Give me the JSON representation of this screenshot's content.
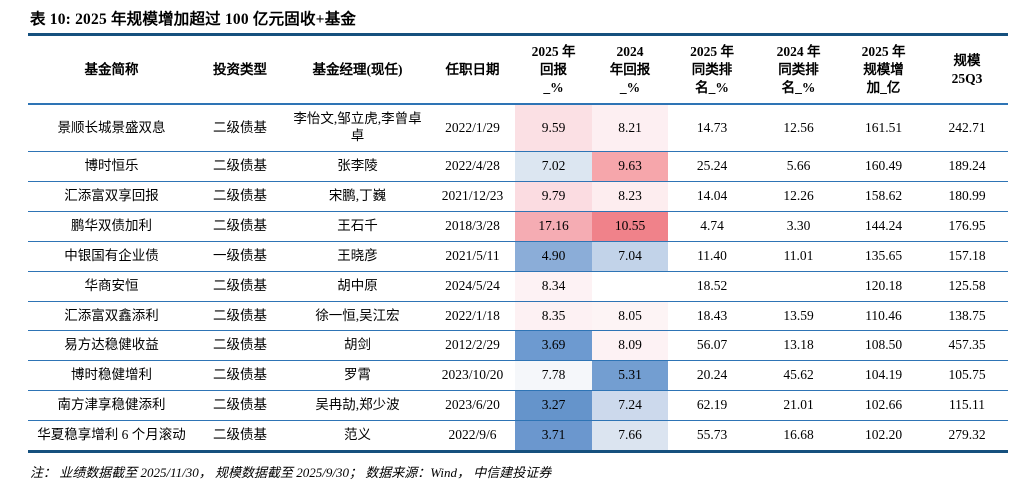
{
  "page": {
    "title": "表 10: 2025 年规模增加超过 100 亿元固收+基金",
    "footnote": "注： 业绩数据截至 2025/11/30， 规模数据截至 2025/9/30； 数据来源：Wind， 中信建投证券"
  },
  "colors": {
    "thick_rule": "#15507e",
    "row_separator": "#2e74b5",
    "heat_red_max": "#f0828a",
    "heat_blue_max": "#6594cb"
  },
  "table": {
    "headers": [
      {
        "label": "基金简称"
      },
      {
        "label": "投资类型"
      },
      {
        "label": "基金经理(现任)"
      },
      {
        "label": "任职日期"
      },
      {
        "label": "2025 年\n回报\n_%"
      },
      {
        "label": "2024\n年回报\n_%"
      },
      {
        "label": "2025 年\n同类排\n名_%"
      },
      {
        "label": "2024 年\n同类排\n名_%"
      },
      {
        "label": "2025 年\n规模增\n加_亿"
      },
      {
        "label": "规模\n25Q3"
      }
    ],
    "rows": [
      {
        "name": "景顺长城景盛双息",
        "type": "二级债基",
        "manager": "李怡文,邹立虎,李曾卓卓",
        "date": "2022/1/29",
        "r2025": "9.59",
        "r2024": "8.21",
        "rank2025": "14.73",
        "rank2024": "12.56",
        "scale_inc": "161.51",
        "scale_q3": "242.71",
        "r2025_bg": "#fbe0e4",
        "r2024_bg": "#fdeff2"
      },
      {
        "name": "博时恒乐",
        "type": "二级债基",
        "manager": "张李陵",
        "date": "2022/4/28",
        "r2025": "7.02",
        "r2024": "9.63",
        "rank2025": "25.24",
        "rank2024": "5.66",
        "scale_inc": "160.49",
        "scale_q3": "189.24",
        "r2025_bg": "#dce6f1",
        "r2024_bg": "#f6a6ab"
      },
      {
        "name": "汇添富双享回报",
        "type": "二级债基",
        "manager": "宋鹏,丁巍",
        "date": "2021/12/23",
        "r2025": "9.79",
        "r2024": "8.23",
        "rank2025": "14.04",
        "rank2024": "12.26",
        "scale_inc": "158.62",
        "scale_q3": "180.99",
        "r2025_bg": "#fbdce1",
        "r2024_bg": "#fdedef"
      },
      {
        "name": "鹏华双债加利",
        "type": "二级债基",
        "manager": "王石千",
        "date": "2018/3/28",
        "r2025": "17.16",
        "r2024": "10.55",
        "rank2025": "4.74",
        "rank2024": "3.30",
        "scale_inc": "144.24",
        "scale_q3": "176.95",
        "r2025_bg": "#f5acb3",
        "r2024_bg": "#f0828a"
      },
      {
        "name": "中银国有企业债",
        "type": "一级债基",
        "manager": "王晓彦",
        "date": "2021/5/11",
        "r2025": "4.90",
        "r2024": "7.04",
        "rank2025": "11.40",
        "rank2024": "11.01",
        "scale_inc": "135.65",
        "scale_q3": "157.18",
        "r2025_bg": "#8badd8",
        "r2024_bg": "#c2d3e9"
      },
      {
        "name": "华商安恒",
        "type": "二级债基",
        "manager": "胡中原",
        "date": "2024/5/24",
        "r2025": "8.34",
        "r2024": "",
        "rank2025": "18.52",
        "rank2024": "",
        "scale_inc": "120.18",
        "scale_q3": "125.58",
        "r2025_bg": "#fdf2f4",
        "r2024_bg": ""
      },
      {
        "name": "汇添富双鑫添利",
        "type": "二级债基",
        "manager": "徐一恒,吴江宏",
        "date": "2022/1/18",
        "r2025": "8.35",
        "r2024": "8.05",
        "rank2025": "18.43",
        "rank2024": "13.59",
        "scale_inc": "110.46",
        "scale_q3": "138.75",
        "r2025_bg": "#fdf1f3",
        "r2024_bg": "#fdf4f5"
      },
      {
        "name": "易方达稳健收益",
        "type": "二级债基",
        "manager": "胡剑",
        "date": "2012/2/29",
        "r2025": "3.69",
        "r2024": "8.09",
        "rank2025": "56.07",
        "rank2024": "13.18",
        "scale_inc": "108.50",
        "scale_q3": "457.35",
        "r2025_bg": "#6d9ad0",
        "r2024_bg": "#fdf2f4"
      },
      {
        "name": "博时稳健增利",
        "type": "二级债基",
        "manager": "罗霄",
        "date": "2023/10/20",
        "r2025": "7.78",
        "r2024": "5.31",
        "rank2025": "20.24",
        "rank2024": "45.62",
        "scale_inc": "104.19",
        "scale_q3": "105.75",
        "r2025_bg": "#f5f7fa",
        "r2024_bg": "#739ed1"
      },
      {
        "name": "南方津享稳健添利",
        "type": "二级债基",
        "manager": "吴冉劼,郑少波",
        "date": "2023/6/20",
        "r2025": "3.27",
        "r2024": "7.24",
        "rank2025": "62.19",
        "rank2024": "21.01",
        "scale_inc": "102.66",
        "scale_q3": "115.11",
        "r2025_bg": "#6594cb",
        "r2024_bg": "#ccd9ec"
      },
      {
        "name": "华夏稳享增利 6 个月滚动",
        "type": "二级债基",
        "manager": "范义",
        "date": "2022/9/6",
        "r2025": "3.71",
        "r2024": "7.66",
        "rank2025": "55.73",
        "rank2024": "16.68",
        "scale_inc": "102.20",
        "scale_q3": "279.32",
        "r2025_bg": "#6b97ce",
        "r2024_bg": "#dbe4f0"
      }
    ]
  }
}
